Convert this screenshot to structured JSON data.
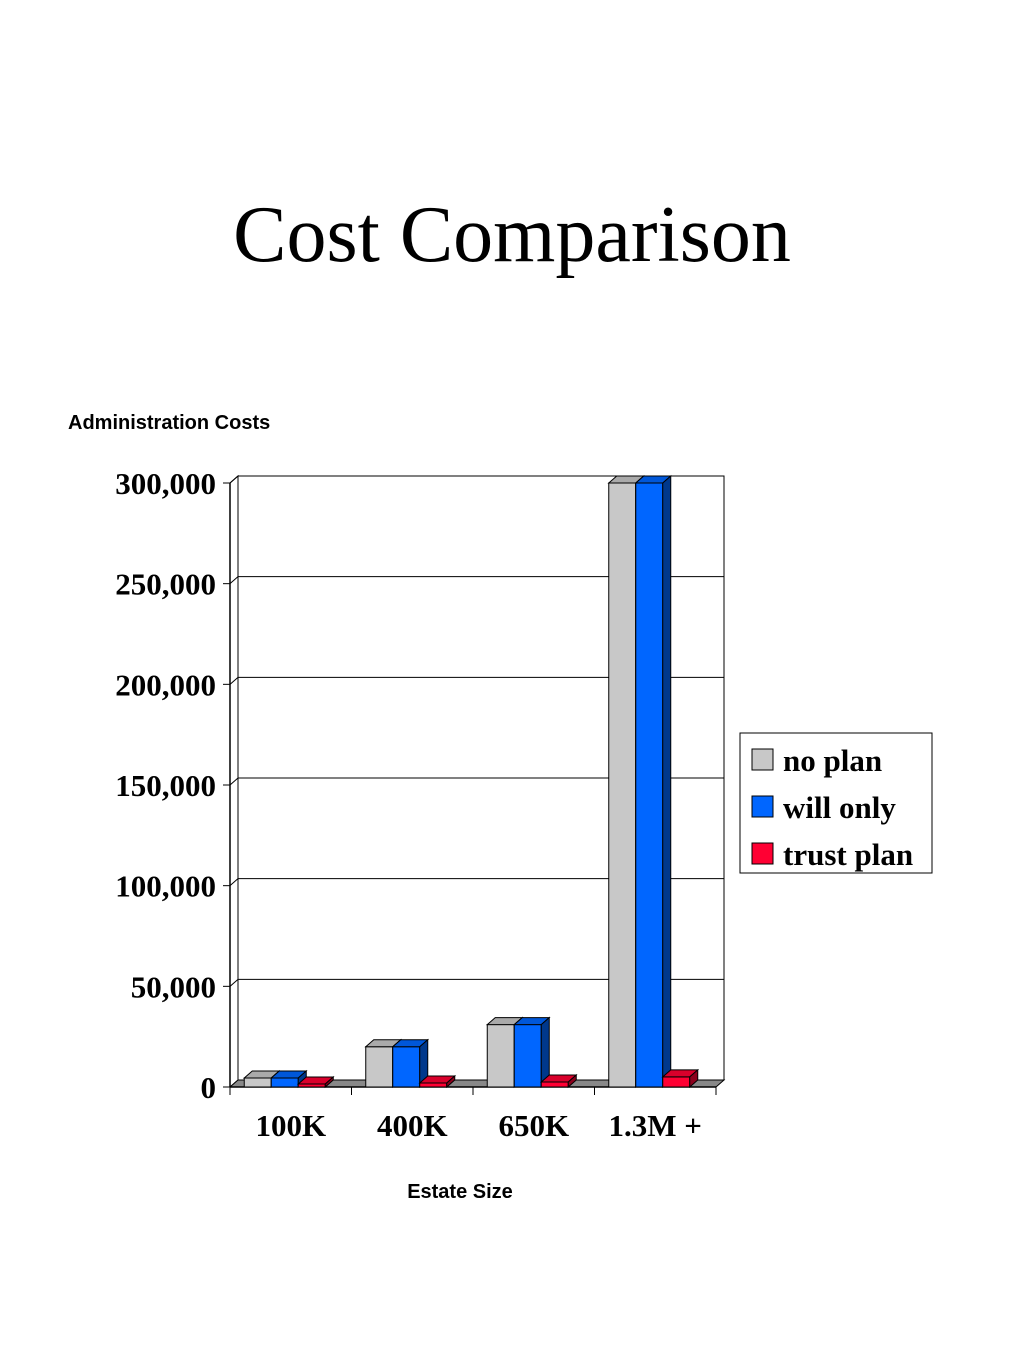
{
  "title": "Cost Comparison",
  "chart_data": {
    "type": "bar",
    "title": "Administration Costs",
    "xlabel": "Estate Size",
    "ylabel": "",
    "categories": [
      "100K",
      "400K",
      "650K",
      "1.3M +"
    ],
    "series": [
      {
        "name": "no plan",
        "color": "#c8c8c8",
        "values": [
          4500,
          20000,
          31000,
          300000
        ]
      },
      {
        "name": "will only",
        "color": "#0066ff",
        "values": [
          4500,
          20000,
          31000,
          300000
        ]
      },
      {
        "name": "trust plan",
        "color": "#ff0033",
        "values": [
          1500,
          2000,
          2500,
          5000
        ]
      }
    ],
    "ylim": [
      0,
      300000
    ],
    "yticks": [
      0,
      50000,
      100000,
      150000,
      200000,
      250000,
      300000
    ],
    "ytick_labels": [
      "0",
      "50,000",
      "100,000",
      "150,000",
      "200,000",
      "250,000",
      "300,000"
    ],
    "grid": true,
    "legend_position": "right",
    "style": "3d-bar"
  }
}
